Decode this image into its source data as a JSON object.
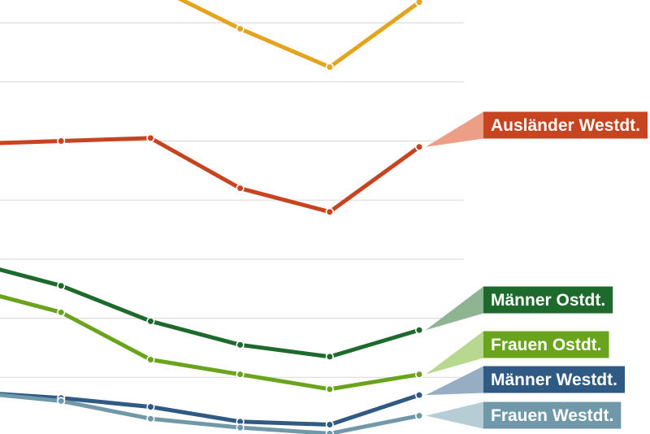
{
  "chart_data": {
    "type": "line",
    "title": "",
    "xlabel": "",
    "ylabel": "",
    "x": [
      0,
      1,
      2,
      3,
      4,
      5
    ],
    "xlim": [
      0,
      5
    ],
    "ylim": [
      0,
      7.3
    ],
    "grid": true,
    "gridlines": [
      0,
      1,
      2,
      3,
      4,
      5,
      6,
      7
    ],
    "series": [
      {
        "name": "",
        "color": "#e5a41e",
        "values": [
          null,
          null,
          7.65,
          6.9,
          6.25,
          7.35
        ]
      },
      {
        "name": "Ausländer Westdt.",
        "color": "#c64520",
        "label_bg": "#c64520",
        "connector_color": "#ec9f86",
        "values": [
          4.95,
          5.0,
          5.05,
          4.2,
          3.8,
          4.9
        ]
      },
      {
        "name": "Männer Ostdt.",
        "color": "#1d6a2c",
        "label_bg": "#1d6a2c",
        "connector_color": "#8fb492",
        "values": [
          2.95,
          2.55,
          1.95,
          1.55,
          1.35,
          1.8
        ]
      },
      {
        "name": "Frauen Ostdt.",
        "color": "#6aa31c",
        "label_bg": "#6aa31c",
        "connector_color": "#b8d78f",
        "values": [
          2.5,
          2.1,
          1.3,
          1.05,
          0.8,
          1.05
        ]
      },
      {
        "name": "Männer Westdt.",
        "color": "#2f5a83",
        "label_bg": "#2f5a83",
        "connector_color": "#97adc4",
        "values": [
          0.75,
          0.65,
          0.5,
          0.25,
          0.2,
          0.7
        ]
      },
      {
        "name": "Frauen Westdt.",
        "color": "#6f98a8",
        "label_bg": "#6f98a8",
        "connector_color": "#b7cdd5",
        "values": [
          0.75,
          0.6,
          0.3,
          0.15,
          0.05,
          0.35
        ]
      }
    ]
  }
}
